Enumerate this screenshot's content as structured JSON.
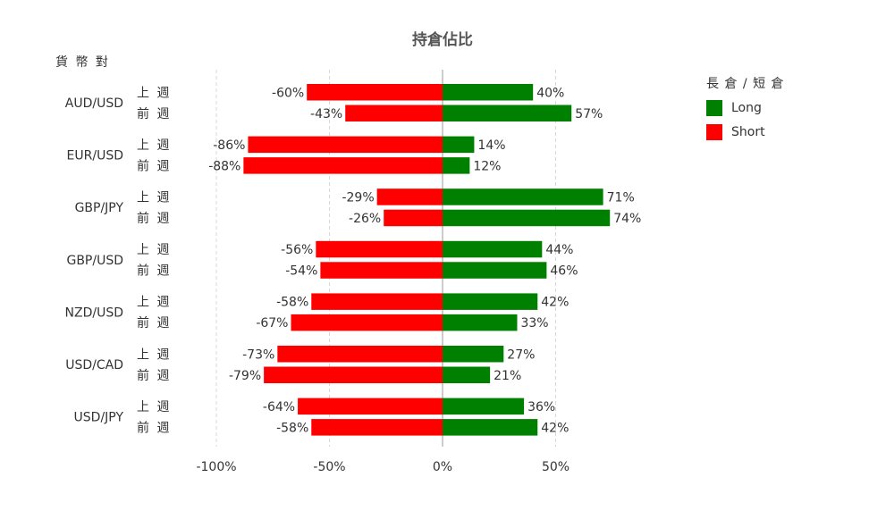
{
  "chart_data": {
    "type": "bar",
    "orientation": "horizontal",
    "stacked": "diverging",
    "title": "持倉佔比",
    "category_axis_title": "貨 幣 對",
    "legend_title": "長 倉 / 短 倉",
    "legend_position": "top-right",
    "groups": [
      "AUD/USD",
      "EUR/USD",
      "GBP/JPY",
      "GBP/USD",
      "NZD/USD",
      "USD/CAD",
      "USD/JPY"
    ],
    "subcategories": [
      "上 週",
      "前 週"
    ],
    "series": [
      {
        "name": "Long",
        "color": "#008000",
        "values": [
          [
            40,
            57
          ],
          [
            14,
            12
          ],
          [
            71,
            74
          ],
          [
            44,
            46
          ],
          [
            42,
            33
          ],
          [
            27,
            21
          ],
          [
            36,
            42
          ]
        ]
      },
      {
        "name": "Short",
        "color": "#ff0000",
        "values": [
          [
            -60,
            -43
          ],
          [
            -86,
            -88
          ],
          [
            -29,
            -26
          ],
          [
            -56,
            -54
          ],
          [
            -58,
            -67
          ],
          [
            -73,
            -79
          ],
          [
            -64,
            -58
          ]
        ]
      }
    ],
    "xlim": [
      -100,
      75
    ],
    "x_ticks": [
      -100,
      -50,
      0,
      50
    ],
    "x_tick_labels": [
      "-100%",
      "-50%",
      "0%",
      "50%"
    ],
    "grid": "vertical-dashed"
  }
}
